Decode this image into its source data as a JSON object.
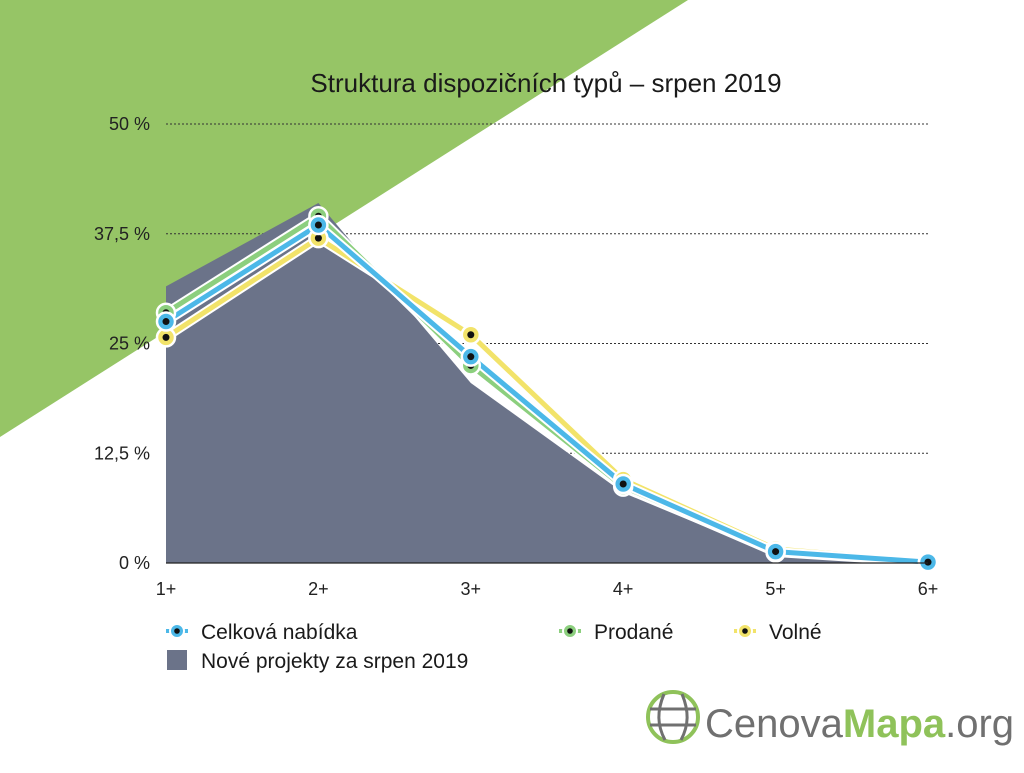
{
  "chart_data": {
    "type": "line",
    "title": "Struktura dispozičních typů – srpen 2019",
    "categories": [
      "1+",
      "2+",
      "3+",
      "4+",
      "5+",
      "6+"
    ],
    "ylim": [
      0,
      50
    ],
    "yticks": [
      0,
      12.5,
      25,
      37.5,
      50
    ],
    "ytick_labels": [
      "0 %",
      "12,5 %",
      "25 %",
      "37,5 %",
      "50 %"
    ],
    "grid": "horizontal dotted",
    "legend_position": "bottom",
    "series": [
      {
        "name": "Celková nabídka",
        "kind": "line",
        "color": "#4cb8e8",
        "values": [
          27.5,
          38.5,
          23.5,
          9,
          1.3,
          0.1
        ]
      },
      {
        "name": "Prodané",
        "kind": "line",
        "color": "#8ccf7e",
        "values": [
          28.5,
          39.5,
          22.5,
          8.7,
          1.2,
          0.1
        ]
      },
      {
        "name": "Volné",
        "kind": "line",
        "color": "#f2e36a",
        "values": [
          25.7,
          37,
          26,
          9.5,
          1.6,
          0.2
        ]
      },
      {
        "name": "Nové projekty za srpen 2019",
        "kind": "area",
        "color": "#6b7389",
        "values": [
          31.5,
          41,
          20.5,
          8,
          0.8,
          0
        ]
      }
    ]
  },
  "logo": {
    "part1": "Cenova",
    "part2": "Mapa",
    "part3": ".org"
  },
  "colors": {
    "background_triangle": "#96c566",
    "dot_center": "#111111"
  }
}
